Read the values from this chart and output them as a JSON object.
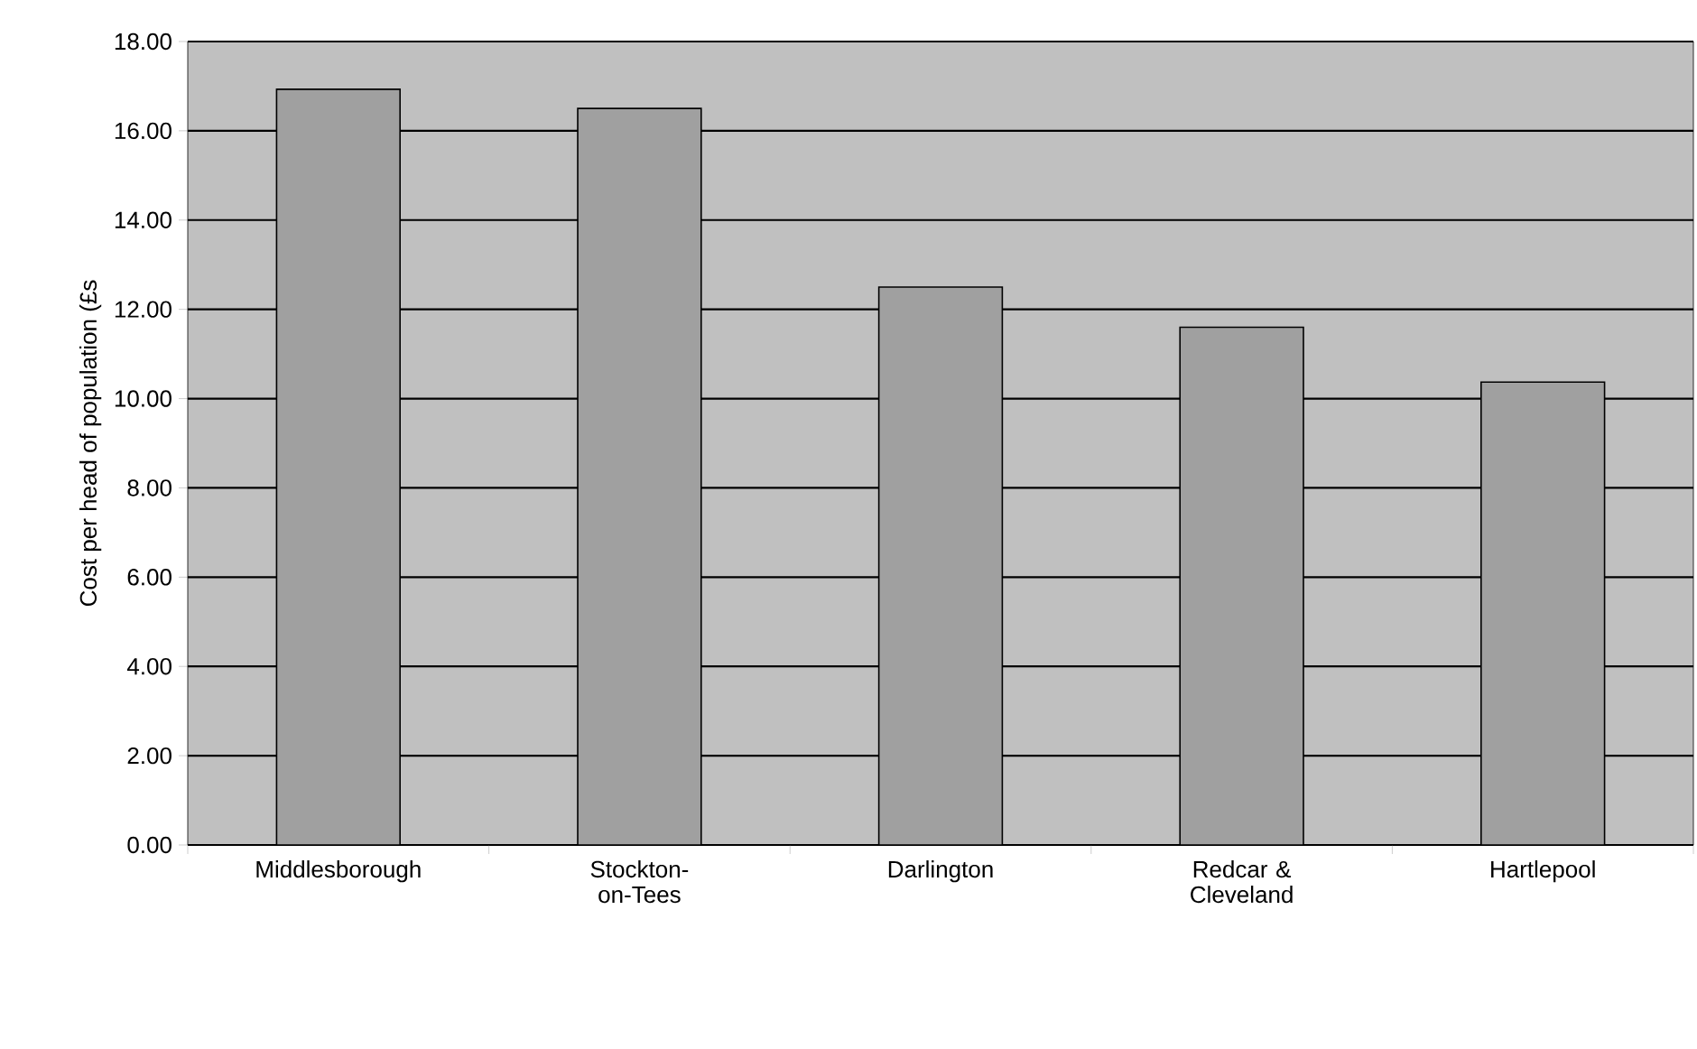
{
  "chart_data": {
    "type": "bar",
    "ylabel": "Cost per head of population (£s",
    "categories": [
      "Middlesborough",
      "Stockton-on-Tees",
      "Darlington",
      "Redcar & Cleveland",
      "Hartlepool"
    ],
    "values": [
      16.93,
      16.5,
      12.5,
      11.6,
      10.37
    ],
    "color": "#a0a0a0",
    "ylim": [
      0,
      18
    ],
    "yticks": [
      {
        "value": 0,
        "label": "0.00"
      },
      {
        "value": 2,
        "label": "2.00"
      },
      {
        "value": 4,
        "label": "4.00"
      },
      {
        "value": 6,
        "label": "6.00"
      },
      {
        "value": 8,
        "label": "8.00"
      },
      {
        "value": 10,
        "label": "10.00"
      },
      {
        "value": 12,
        "label": "12.00"
      },
      {
        "value": 14,
        "label": "14.00"
      },
      {
        "value": 16,
        "label": "16.00"
      },
      {
        "value": 18,
        "label": "18.00"
      }
    ],
    "grid": "y"
  }
}
